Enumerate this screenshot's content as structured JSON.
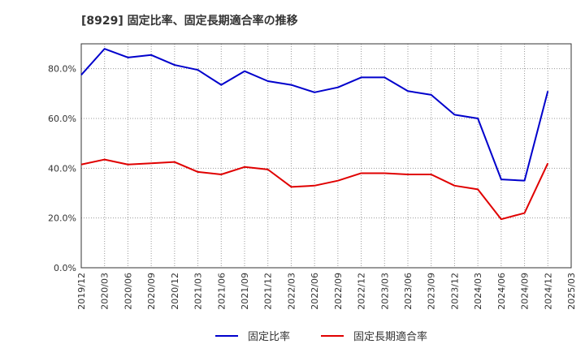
{
  "chart_data": {
    "type": "line",
    "title": "[8929]  固定比率、固定長期適合率の推移",
    "xlabel": "",
    "ylabel": "",
    "ylim": [
      0,
      90
    ],
    "yticks": [
      "0.0%",
      "20.0%",
      "40.0%",
      "60.0%",
      "80.0%"
    ],
    "ytick_values": [
      0,
      20,
      40,
      60,
      80
    ],
    "categories": [
      "2019/12",
      "2020/03",
      "2020/06",
      "2020/09",
      "2020/12",
      "2021/03",
      "2021/06",
      "2021/09",
      "2021/12",
      "2022/03",
      "2022/06",
      "2022/09",
      "2022/12",
      "2023/03",
      "2023/06",
      "2023/09",
      "2023/12",
      "2024/03",
      "2024/06",
      "2024/09",
      "2024/12",
      "2025/03"
    ],
    "series": [
      {
        "name": "固定比率",
        "color": "#0000cc",
        "values": [
          77.5,
          88.0,
          84.5,
          85.5,
          81.5,
          79.5,
          73.5,
          79.0,
          75.0,
          73.5,
          70.5,
          72.5,
          76.5,
          76.5,
          71.0,
          69.5,
          61.5,
          60.0,
          35.5,
          35.0,
          71.0,
          null
        ]
      },
      {
        "name": "固定長期適合率",
        "color": "#e00000",
        "values": [
          41.5,
          43.5,
          41.5,
          42.0,
          42.5,
          38.5,
          37.5,
          40.5,
          39.5,
          32.5,
          33.0,
          35.0,
          38.0,
          38.0,
          37.5,
          37.5,
          33.0,
          31.5,
          19.5,
          22.0,
          42.0,
          null
        ]
      }
    ],
    "grid": true,
    "legend": "bottom-center"
  }
}
